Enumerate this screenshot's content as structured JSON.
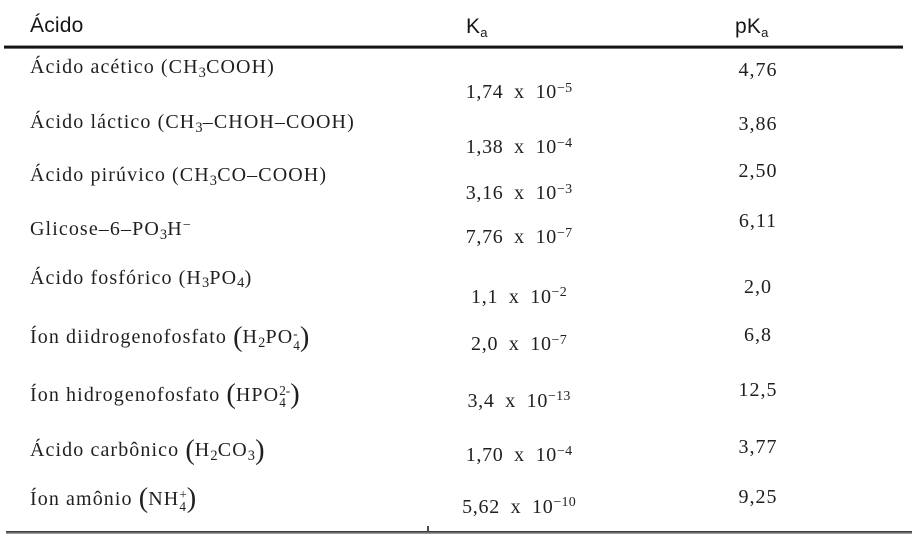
{
  "colors": {
    "background": "#ffffff",
    "text": "#1f1f1f",
    "header_text": "#161616",
    "rule_dark": "#141414",
    "rule_gray": "#5a5a5a"
  },
  "header": {
    "acid": "Ácido",
    "ka": "K_a_",
    "pka": "pK_a_"
  },
  "table": {
    "rows": [
      {
        "acid": "Ácido acético (CH_3_COOH)",
        "ka": "1,74 x 10^−5^",
        "pka": "4,76"
      },
      {
        "acid": "Ácido láctico (CH_3_–CHOH–COOH)",
        "ka": "1,38 x 10^−4^",
        "pka": "3,86"
      },
      {
        "acid": "Ácido pirúvico (CH_3_CO–COOH)",
        "ka": "3,16 x 10^−3^",
        "pka": "2,50"
      },
      {
        "acid": "Glicose–6–PO_3_H^−^",
        "ka": "7,76 x 10^−7^",
        "pka": "6,11"
      },
      {
        "acid": "Ácido fosfórico (H_3_PO_4_)",
        "ka": "1,1 x 10^−2^",
        "pka": "2,0"
      },
      {
        "acid": "Íon diidrogenofosfato ⟨H_2_PO{-|4}⟩",
        "ka": "2,0 x 10^−7^",
        "pka": "6,8"
      },
      {
        "acid": "Íon hidrogenofosfato ⟨HPO{2-|4}⟩",
        "ka": "3,4 x 10^−13^",
        "pka": "12,5"
      },
      {
        "acid": "Ácido carbônico ⟨H_2_CO_3_⟩",
        "ka": "1,70 x 10^−4^",
        "pka": "3,77"
      },
      {
        "acid": "Íon amônio ⟨NH{+|4}⟩",
        "ka": "5,62 x 10^−10^",
        "pka": "9,25"
      }
    ]
  }
}
